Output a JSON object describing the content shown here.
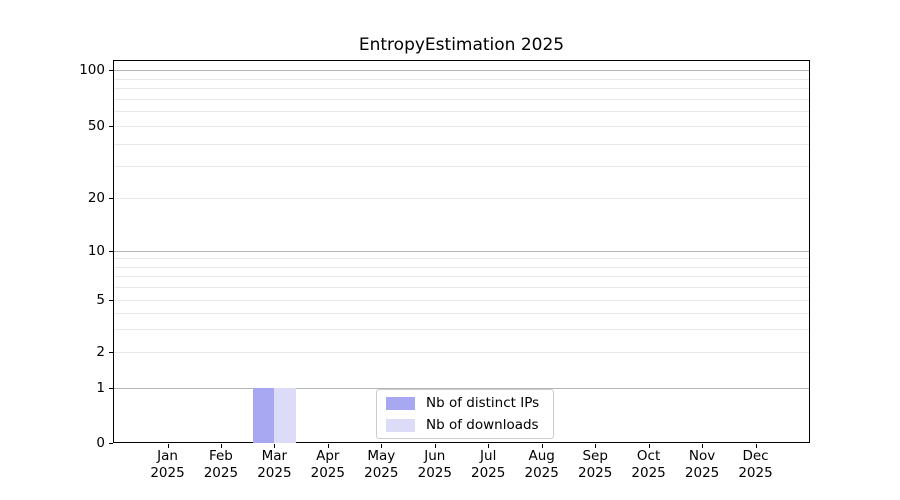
{
  "title": "EntropyEstimation 2025",
  "legend": {
    "items": [
      {
        "label": "Nb of distinct IPs",
        "color": "#a7a7f2"
      },
      {
        "label": "Nb of downloads",
        "color": "#dcdcf8"
      }
    ]
  },
  "y_axis": {
    "tick_labels": [
      "0",
      "1",
      "2",
      "5",
      "10",
      "20",
      "50",
      "100"
    ]
  },
  "x_axis": {
    "months": [
      "Jan",
      "Feb",
      "Mar",
      "Apr",
      "May",
      "Jun",
      "Jul",
      "Aug",
      "Sep",
      "Oct",
      "Nov",
      "Dec"
    ],
    "year": "2025"
  },
  "chart_data": {
    "type": "bar",
    "title": "EntropyEstimation 2025",
    "categories": [
      "Jan 2025",
      "Feb 2025",
      "Mar 2025",
      "Apr 2025",
      "May 2025",
      "Jun 2025",
      "Jul 2025",
      "Aug 2025",
      "Sep 2025",
      "Oct 2025",
      "Nov 2025",
      "Dec 2025"
    ],
    "series": [
      {
        "name": "Nb of distinct IPs",
        "color": "#a7a7f2",
        "values": [
          0,
          0,
          1,
          0,
          0,
          0,
          0,
          0,
          0,
          0,
          0,
          0
        ]
      },
      {
        "name": "Nb of downloads",
        "color": "#dcdcf8",
        "values": [
          0,
          0,
          1,
          0,
          0,
          0,
          0,
          0,
          0,
          0,
          0,
          0
        ]
      }
    ],
    "yscale": "log above 1, linear 0-1",
    "yticks": [
      0,
      1,
      2,
      5,
      10,
      20,
      50,
      100
    ],
    "ylim": [
      0,
      112
    ],
    "xlabel": "",
    "ylabel": "",
    "grid": "horizontal major and minor gridlines",
    "legend_position": "lower center"
  },
  "colors": {
    "background": "#ffffff",
    "spine": "#000000",
    "text": "#000000",
    "grid_major": "#b5b5b5",
    "grid_minor": "#e9e9e9"
  }
}
